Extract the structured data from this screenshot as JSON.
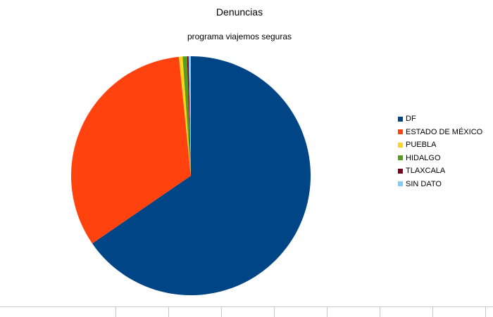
{
  "chart_data": {
    "type": "pie",
    "title": "Denuncias",
    "subtitle": "programa viajemos seguras",
    "categories": [
      "DF",
      "ESTADO DE MÉXICO",
      "PUEBLA",
      "HIDALGO",
      "TLAXCALA",
      "SIN DATO"
    ],
    "values": [
      65.4,
      33.0,
      0.5,
      0.6,
      0.2,
      0.3
    ],
    "unit": "percent",
    "colors": [
      "#004586",
      "#ff420e",
      "#ffd320",
      "#579d1c",
      "#7e0021",
      "#83caff"
    ],
    "legend_position": "right",
    "start_angle": "top",
    "direction": "clockwise",
    "order": [
      0,
      1,
      2,
      3,
      4,
      5
    ]
  }
}
